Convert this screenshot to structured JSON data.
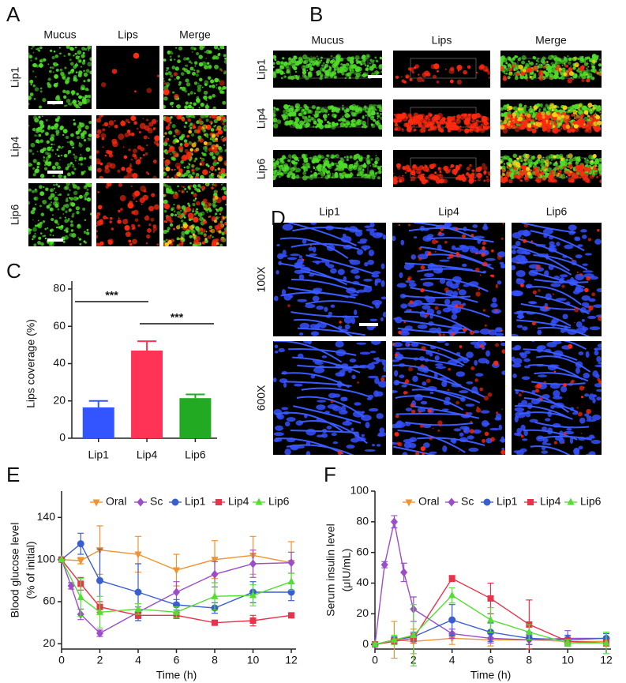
{
  "panels": {
    "A": {
      "label": "A",
      "columns": [
        "Mucus",
        "Lips",
        "Merge"
      ],
      "rows": [
        "Lip1",
        "Lip4",
        "Lip6"
      ]
    },
    "B": {
      "label": "B",
      "columns": [
        "Mucus",
        "Lips",
        "Merge"
      ],
      "rows": [
        "Lip1",
        "Lip4",
        "Lip6"
      ]
    },
    "D": {
      "label": "D",
      "columns": [
        "Lip1",
        "Lip4",
        "Lip6"
      ],
      "rows": [
        "100X",
        "600X"
      ]
    }
  },
  "chart_data": [
    {
      "type": "bar",
      "panel_label": "C",
      "ylabel": [
        "Lips coverage (%)"
      ],
      "categories": [
        "Lip1",
        "Lip4",
        "Lip6"
      ],
      "values": [
        16.5,
        47,
        21.5
      ],
      "errors": [
        3.5,
        5,
        2
      ],
      "colors": [
        "#3355ff",
        "#ff3355",
        "#22aa22"
      ],
      "ylim": [
        0,
        80
      ],
      "yticks": [
        0,
        20,
        40,
        60,
        80
      ],
      "annotations": [
        "***",
        "***"
      ],
      "grid": false
    },
    {
      "type": "line",
      "panel_label": "E",
      "ylabel": [
        "Blood glucose level",
        "(% of initial)"
      ],
      "xlabel": "Time (h)",
      "x": [
        0,
        1,
        2,
        4,
        6,
        8,
        10,
        12
      ],
      "series": [
        {
          "name": "Oral",
          "color": "#f0922e",
          "marker": "triangle-down",
          "values": [
            100,
            99,
            109,
            105,
            90,
            100,
            104,
            97
          ],
          "errors": [
            0,
            3,
            23,
            17,
            15,
            18,
            18,
            20
          ]
        },
        {
          "name": "Sc",
          "color": "#9b4dca",
          "marker": "diamond",
          "x": [
            0,
            0.5,
            1,
            2,
            4,
            6,
            8,
            10,
            12
          ],
          "values": [
            100,
            75,
            48,
            30,
            50,
            69,
            86,
            96,
            97
          ],
          "errors": [
            0,
            3,
            5,
            3,
            5,
            10,
            12,
            13,
            10
          ]
        },
        {
          "name": "Lip1",
          "color": "#3a5fcd",
          "marker": "circle",
          "values": [
            100,
            115,
            80,
            69,
            57,
            54,
            69,
            69
          ],
          "errors": [
            0,
            10,
            30,
            27,
            5,
            5,
            10,
            8
          ]
        },
        {
          "name": "Lip4",
          "color": "#e8334a",
          "marker": "square",
          "values": [
            100,
            77,
            55,
            47,
            47,
            40,
            42,
            47
          ],
          "errors": [
            0,
            6,
            5,
            3,
            3,
            2,
            5,
            2
          ]
        },
        {
          "name": "Lip6",
          "color": "#55dd33",
          "marker": "triangle-up",
          "values": [
            100,
            64,
            50,
            53,
            50,
            65,
            66,
            79
          ],
          "errors": [
            0,
            18,
            15,
            5,
            5,
            13,
            10,
            8
          ]
        }
      ],
      "xlim": [
        0,
        12
      ],
      "xticks": [
        0,
        2,
        4,
        6,
        8,
        10,
        12
      ],
      "ylim": [
        15,
        165
      ],
      "yticks": [
        20,
        60,
        100,
        140
      ],
      "grid": false
    },
    {
      "type": "line",
      "panel_label": "F",
      "ylabel": [
        "Serum insulin level",
        "(μIU/mL)"
      ],
      "xlabel": "Time (h)",
      "x": [
        0,
        1,
        2,
        4,
        6,
        8,
        10,
        12
      ],
      "series": [
        {
          "name": "Oral",
          "color": "#f0922e",
          "marker": "triangle-down",
          "values": [
            0,
            3,
            2,
            4,
            3,
            3,
            2,
            2
          ],
          "errors": [
            1,
            12,
            8,
            4,
            4,
            3,
            3,
            3
          ]
        },
        {
          "name": "Sc",
          "color": "#9b4dca",
          "marker": "diamond",
          "x": [
            0,
            0.5,
            1,
            1.5,
            2,
            4,
            6,
            8,
            10,
            12
          ],
          "values": [
            0,
            52,
            80,
            47,
            23,
            7,
            4,
            3,
            4,
            4
          ],
          "errors": [
            1,
            2,
            4,
            6,
            8,
            3,
            3,
            3,
            5,
            4
          ]
        },
        {
          "name": "Lip1",
          "color": "#3a5fcd",
          "marker": "circle",
          "values": [
            0,
            3,
            5,
            16,
            8,
            4,
            3,
            4
          ],
          "errors": [
            1,
            2,
            3,
            10,
            6,
            4,
            3,
            3
          ]
        },
        {
          "name": "Lip4",
          "color": "#e8334a",
          "marker": "square",
          "values": [
            0,
            2,
            4,
            43,
            30,
            13,
            2,
            1
          ],
          "errors": [
            1,
            2,
            3,
            2,
            10,
            16,
            2,
            2
          ]
        },
        {
          "name": "Lip6",
          "color": "#55dd33",
          "marker": "triangle-up",
          "values": [
            0,
            3,
            6,
            32,
            16,
            8,
            1,
            1
          ],
          "errors": [
            1,
            3,
            20,
            5,
            8,
            5,
            2,
            7
          ]
        }
      ],
      "xlim": [
        0,
        12
      ],
      "xticks": [
        0,
        2,
        4,
        6,
        8,
        10,
        12
      ],
      "ylim": [
        -3,
        100
      ],
      "yticks": [
        0,
        20,
        40,
        60,
        80,
        100
      ],
      "grid": false
    }
  ]
}
